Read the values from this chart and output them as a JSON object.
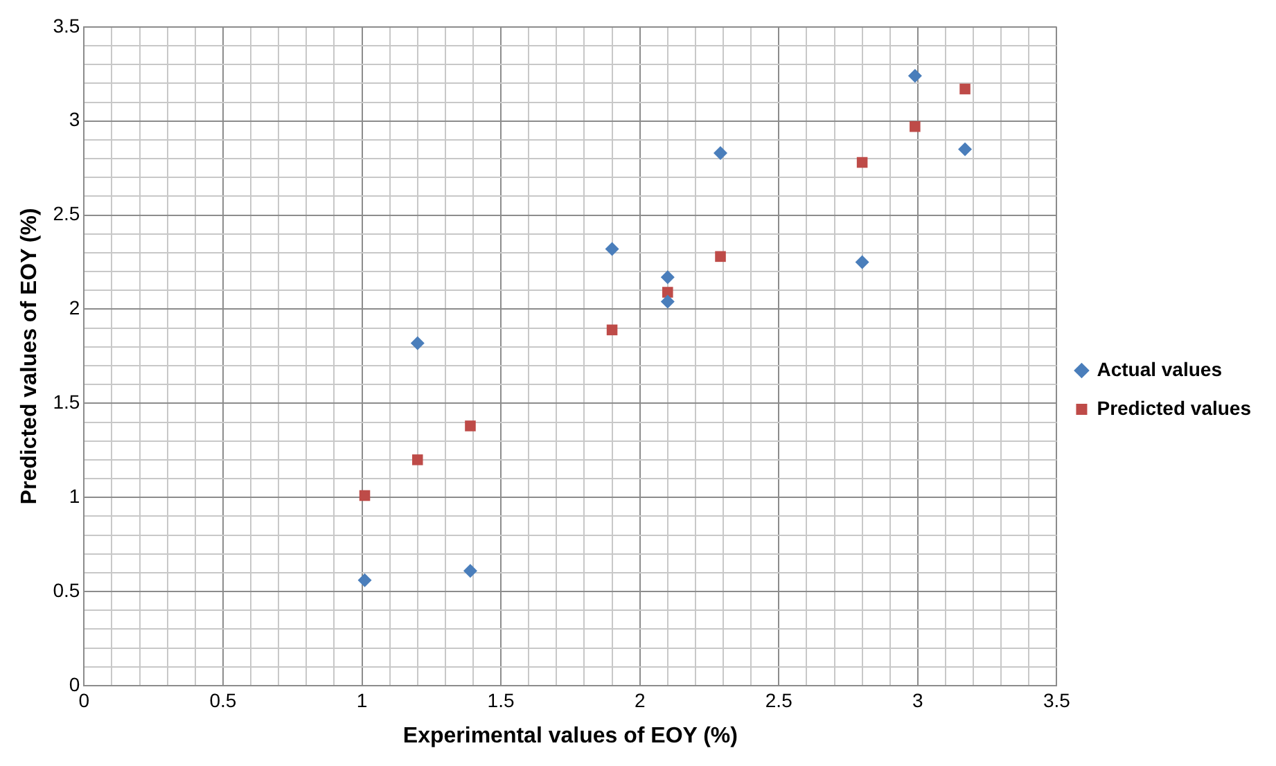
{
  "chart_data": {
    "type": "scatter",
    "xlabel": "Experimental values of EOY (%)",
    "ylabel": "Predicted values of EOY (%)",
    "xlim": [
      0,
      3.5
    ],
    "ylim": [
      0,
      3.5
    ],
    "xticks": [
      0,
      {
        "value": 0.1,
        "label": null
      },
      {
        "value": 0.2,
        "label": null
      },
      {
        "value": 0.3,
        "label": null
      },
      {
        "value": 0.4,
        "label": null
      },
      0.5,
      {
        "value": 0.6,
        "label": null
      },
      {
        "value": 0.7,
        "label": null
      },
      {
        "value": 0.8,
        "label": null
      },
      {
        "value": 0.9,
        "label": null
      },
      1,
      {
        "value": 1.1,
        "label": null
      },
      {
        "value": 1.2,
        "label": null
      },
      {
        "value": 1.3,
        "label": null
      },
      {
        "value": 1.4,
        "label": null
      },
      1.5,
      {
        "value": 1.6,
        "label": null
      },
      {
        "value": 1.7,
        "label": null
      },
      {
        "value": 1.8,
        "label": null
      },
      {
        "value": 1.9,
        "label": null
      },
      2,
      {
        "value": 2.1,
        "label": null
      },
      {
        "value": 2.2,
        "label": null
      },
      {
        "value": 2.3,
        "label": null
      },
      {
        "value": 2.4,
        "label": null
      },
      2.5,
      {
        "value": 2.6,
        "label": null
      },
      {
        "value": 2.7,
        "label": null
      },
      {
        "value": 2.8,
        "label": null
      },
      {
        "value": 2.9,
        "label": null
      },
      3,
      {
        "value": 3.1,
        "label": null
      },
      {
        "value": 3.2,
        "label": null
      },
      {
        "value": 3.3,
        "label": null
      },
      {
        "value": 3.4,
        "label": null
      },
      3.5
    ],
    "yticks": [
      0,
      {
        "value": 0.1,
        "label": null
      },
      {
        "value": 0.2,
        "label": null
      },
      {
        "value": 0.3,
        "label": null
      },
      {
        "value": 0.4,
        "label": null
      },
      0.5,
      {
        "value": 0.6,
        "label": null
      },
      {
        "value": 0.7,
        "label": null
      },
      {
        "value": 0.8,
        "label": null
      },
      {
        "value": 0.9,
        "label": null
      },
      1,
      {
        "value": 1.1,
        "label": null
      },
      {
        "value": 1.2,
        "label": null
      },
      {
        "value": 1.3,
        "label": null
      },
      {
        "value": 1.4,
        "label": null
      },
      1.5,
      {
        "value": 1.6,
        "label": null
      },
      {
        "value": 1.7,
        "label": null
      },
      {
        "value": 1.8,
        "label": null
      },
      {
        "value": 1.9,
        "label": null
      },
      2,
      {
        "value": 2.1,
        "label": null
      },
      {
        "value": 2.2,
        "label": null
      },
      {
        "value": 2.3,
        "label": null
      },
      {
        "value": 2.4,
        "label": null
      },
      2.5,
      {
        "value": 2.6,
        "label": null
      },
      {
        "value": 2.7,
        "label": null
      },
      {
        "value": 2.8,
        "label": null
      },
      {
        "value": 2.9,
        "label": null
      },
      3,
      {
        "value": 3.1,
        "label": null
      },
      {
        "value": 3.2,
        "label": null
      },
      {
        "value": 3.3,
        "label": null
      },
      {
        "value": 3.4,
        "label": null
      },
      3.5
    ],
    "grid": true,
    "legend": "right",
    "series": [
      {
        "name": "Actual values",
        "color": "#4a7ebb",
        "marker": "diamond",
        "x": [
          1.01,
          1.2,
          1.39,
          1.9,
          2.1,
          2.1,
          2.29,
          2.8,
          2.99,
          3.17
        ],
        "values": [
          0.56,
          1.82,
          0.61,
          2.32,
          2.17,
          2.04,
          2.83,
          2.25,
          3.24,
          2.85
        ]
      },
      {
        "name": "Predicted values",
        "color": "#be4b48",
        "marker": "square",
        "x": [
          1.01,
          1.2,
          1.39,
          1.9,
          2.1,
          2.29,
          2.8,
          2.99,
          3.17
        ],
        "values": [
          1.01,
          1.2,
          1.38,
          1.89,
          2.09,
          2.28,
          2.78,
          2.97,
          3.17
        ]
      }
    ]
  }
}
